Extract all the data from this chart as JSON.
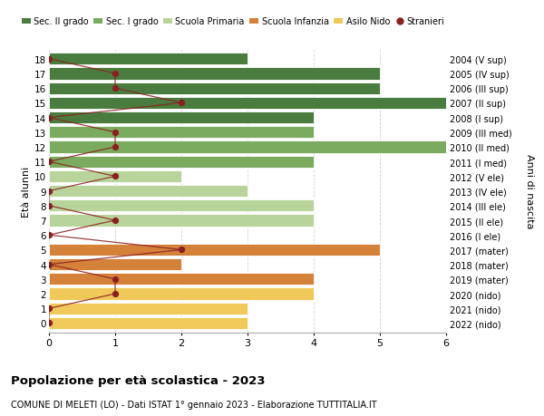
{
  "ages": [
    18,
    17,
    16,
    15,
    14,
    13,
    12,
    11,
    10,
    9,
    8,
    7,
    6,
    5,
    4,
    3,
    2,
    1,
    0
  ],
  "years": [
    "2004 (V sup)",
    "2005 (IV sup)",
    "2006 (III sup)",
    "2007 (II sup)",
    "2008 (I sup)",
    "2009 (III med)",
    "2010 (II med)",
    "2011 (I med)",
    "2012 (V ele)",
    "2013 (IV ele)",
    "2014 (III ele)",
    "2015 (II ele)",
    "2016 (I ele)",
    "2017 (mater)",
    "2018 (mater)",
    "2019 (mater)",
    "2020 (nido)",
    "2021 (nido)",
    "2022 (nido)"
  ],
  "bar_values": [
    3,
    5,
    5,
    6,
    4,
    4,
    6,
    4,
    2,
    3,
    4,
    4,
    0,
    5,
    2,
    4,
    4,
    3,
    3
  ],
  "bar_colors": [
    "#4a7c3f",
    "#4a7c3f",
    "#4a7c3f",
    "#4a7c3f",
    "#4a7c3f",
    "#7aab5e",
    "#7aab5e",
    "#7aab5e",
    "#b8d49a",
    "#b8d49a",
    "#b8d49a",
    "#b8d49a",
    "#b8d49a",
    "#d4813a",
    "#d4813a",
    "#d4813a",
    "#f0c95a",
    "#f0c95a",
    "#f0c95a"
  ],
  "stranieri_x": [
    0,
    1,
    1,
    2,
    0,
    1,
    1,
    0,
    1,
    0,
    0,
    1,
    0,
    2,
    0,
    1,
    1,
    0,
    0
  ],
  "color_sec2": "#4a7c3f",
  "color_sec1": "#7aab5e",
  "color_primaria": "#b8d49a",
  "color_infanzia": "#d4813a",
  "color_nido": "#f0c95a",
  "color_stranieri": "#8b2020",
  "ylabel_left": "Età alunni",
  "ylabel_right": "Anni di nascita",
  "title": "Popolazione per età scolastica - 2023",
  "subtitle": "COMUNE DI MELETI (LO) - Dati ISTAT 1° gennaio 2023 - Elaborazione TUTTITALIA.IT",
  "xlim": [
    0,
    6
  ],
  "bg_color": "#ffffff",
  "plot_bg_color": "#ffffff",
  "grid_color": "#d0d0d0"
}
